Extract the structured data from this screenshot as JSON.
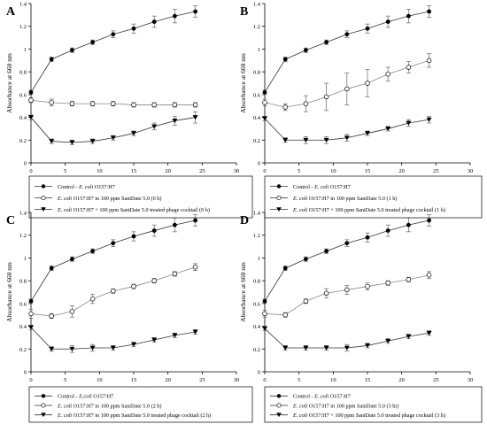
{
  "chart_data": [
    {
      "panel": "A",
      "type": "line",
      "ylabel": "Absorbance at 660 nm",
      "xlabel": "Time (Hours)",
      "xlim": [
        0,
        30
      ],
      "ylim": [
        0,
        1.4
      ],
      "x_ticks": [
        0,
        5,
        10,
        15,
        20,
        25,
        30
      ],
      "y_ticks": [
        0,
        0.2,
        0.4,
        0.6,
        0.8,
        1,
        1.2,
        1.4
      ],
      "grid": false,
      "legend_position": "below",
      "x": [
        0,
        3,
        6,
        9,
        12,
        15,
        18,
        21,
        24
      ],
      "series": [
        {
          "label_parts": [
            "Control - ",
            "E. coli",
            " O157:H7"
          ],
          "marker": "filled-circle",
          "values": [
            0.62,
            0.91,
            0.99,
            1.06,
            1.13,
            1.18,
            1.24,
            1.29,
            1.33
          ],
          "errors": [
            0.02,
            0.02,
            0.02,
            0.02,
            0.03,
            0.04,
            0.05,
            0.06,
            0.05
          ]
        },
        {
          "label_parts": [
            "",
            "E. coli",
            " O157:H7 in 100 ppm SaniDate 5.0 (0 h)"
          ],
          "marker": "open-circle",
          "values": [
            0.55,
            0.53,
            0.52,
            0.52,
            0.52,
            0.51,
            0.51,
            0.51,
            0.51
          ],
          "errors": [
            0.02,
            0.03,
            0.02,
            0.02,
            0.02,
            0.02,
            0.02,
            0.02,
            0.02
          ]
        },
        {
          "label_parts": [
            "",
            "E. coli",
            " O157:H7 + 100 ppm SaniDate 5.0 treated phage cocktail (0 h)"
          ],
          "marker": "filled-triangle-down",
          "values": [
            0.4,
            0.19,
            0.18,
            0.19,
            0.22,
            0.26,
            0.32,
            0.37,
            0.4
          ],
          "errors": [
            0.02,
            0.02,
            0.02,
            0.02,
            0.02,
            0.02,
            0.03,
            0.04,
            0.05
          ]
        }
      ]
    },
    {
      "panel": "B",
      "type": "line",
      "ylabel": "Absorbance at 660 nm",
      "xlabel": "Time (Hours)",
      "xlim": [
        0,
        30
      ],
      "ylim": [
        0,
        1.4
      ],
      "x_ticks": [
        0,
        5,
        10,
        15,
        20,
        25,
        30
      ],
      "y_ticks": [
        0,
        0.2,
        0.4,
        0.6,
        0.8,
        1,
        1.2,
        1.4
      ],
      "grid": false,
      "legend_position": "below",
      "x": [
        0,
        3,
        6,
        9,
        12,
        15,
        18,
        21,
        24
      ],
      "series": [
        {
          "label_parts": [
            "Control - ",
            "E. coli",
            " O157:H7"
          ],
          "marker": "filled-circle",
          "values": [
            0.62,
            0.91,
            0.99,
            1.06,
            1.13,
            1.18,
            1.24,
            1.29,
            1.33
          ],
          "errors": [
            0.02,
            0.02,
            0.02,
            0.02,
            0.03,
            0.04,
            0.05,
            0.06,
            0.05
          ]
        },
        {
          "label_parts": [
            "",
            "E. coli",
            " O157:H7 in 100 ppm SaniDate 5.0 (1 h)"
          ],
          "marker": "open-circle",
          "values": [
            0.53,
            0.49,
            0.52,
            0.58,
            0.65,
            0.7,
            0.78,
            0.84,
            0.9
          ],
          "errors": [
            0.03,
            0.03,
            0.07,
            0.12,
            0.14,
            0.12,
            0.06,
            0.05,
            0.06
          ]
        },
        {
          "label_parts": [
            "",
            "E. coli",
            " O157:H7 + 100 ppm SaniDate 5.0 treated phage cocktail (1 h)"
          ],
          "marker": "filled-triangle-down",
          "values": [
            0.39,
            0.2,
            0.2,
            0.2,
            0.22,
            0.26,
            0.3,
            0.35,
            0.38
          ],
          "errors": [
            0.02,
            0.02,
            0.03,
            0.03,
            0.03,
            0.02,
            0.02,
            0.03,
            0.03
          ]
        }
      ]
    },
    {
      "panel": "C",
      "type": "line",
      "ylabel": "Absorbance at 660 nm",
      "xlabel": "Time (Hours)",
      "xlim": [
        0,
        30
      ],
      "ylim": [
        0,
        1.4
      ],
      "x_ticks": [
        0,
        5,
        10,
        15,
        20,
        25,
        30
      ],
      "y_ticks": [
        0,
        0.2,
        0.4,
        0.6,
        0.8,
        1,
        1.2,
        1.4
      ],
      "grid": false,
      "legend_position": "below",
      "x": [
        0,
        3,
        6,
        9,
        12,
        15,
        18,
        21,
        24
      ],
      "series": [
        {
          "label_parts": [
            "Control - ",
            "E.coli",
            " O157:H7"
          ],
          "marker": "filled-circle",
          "values": [
            0.62,
            0.91,
            0.99,
            1.06,
            1.13,
            1.19,
            1.24,
            1.29,
            1.33
          ],
          "errors": [
            0.02,
            0.02,
            0.02,
            0.02,
            0.03,
            0.04,
            0.05,
            0.06,
            0.05
          ]
        },
        {
          "label_parts": [
            "",
            "E. coli",
            " O157:H7 in 100 ppm SaniDate 5.0 (2 h)"
          ],
          "marker": "open-circle",
          "values": [
            0.51,
            0.49,
            0.53,
            0.64,
            0.71,
            0.75,
            0.8,
            0.86,
            0.92
          ],
          "errors": [
            0.04,
            0.02,
            0.05,
            0.04,
            0.02,
            0.02,
            0.02,
            0.02,
            0.03
          ]
        },
        {
          "label_parts": [
            "",
            "E. coli",
            " O157:H7 in 100 ppm SaniDate 5.0 treated phage cocktail (2 h)"
          ],
          "marker": "filled-triangle-down",
          "values": [
            0.39,
            0.2,
            0.2,
            0.21,
            0.21,
            0.24,
            0.28,
            0.32,
            0.35
          ],
          "errors": [
            0.02,
            0.02,
            0.03,
            0.03,
            0.02,
            0.02,
            0.02,
            0.02,
            0.02
          ]
        }
      ]
    },
    {
      "panel": "D",
      "type": "line",
      "ylabel": "Absorbance at 660 nm",
      "xlabel": "Time (Hours)",
      "xlim": [
        0,
        30
      ],
      "ylim": [
        0,
        1.4
      ],
      "x_ticks": [
        0,
        5,
        10,
        15,
        20,
        25,
        30
      ],
      "y_ticks": [
        0,
        0.2,
        0.4,
        0.6,
        0.8,
        1,
        1.2,
        1.4
      ],
      "grid": false,
      "legend_position": "below",
      "x": [
        0,
        3,
        6,
        9,
        12,
        15,
        18,
        21,
        24
      ],
      "series": [
        {
          "label_parts": [
            "Control - ",
            "E. coli",
            " O157:H7"
          ],
          "marker": "filled-circle",
          "values": [
            0.62,
            0.91,
            0.99,
            1.06,
            1.13,
            1.18,
            1.24,
            1.29,
            1.33
          ],
          "errors": [
            0.02,
            0.02,
            0.02,
            0.02,
            0.03,
            0.04,
            0.05,
            0.06,
            0.05
          ]
        },
        {
          "label_parts": [
            "",
            "E. coli",
            " O157:H7 in 100 ppm SaniDate 5.0 (3 hr)"
          ],
          "marker": "open-circle",
          "values": [
            0.51,
            0.5,
            0.62,
            0.69,
            0.72,
            0.75,
            0.78,
            0.81,
            0.85
          ],
          "errors": [
            0.03,
            0.02,
            0.02,
            0.04,
            0.04,
            0.03,
            0.02,
            0.02,
            0.03
          ]
        },
        {
          "label_parts": [
            "",
            "E. coli",
            " O157:H7 + 100 ppm SaniDate 5.0 treated phage cocktail  (3 h)"
          ],
          "marker": "filled-triangle-down",
          "values": [
            0.38,
            0.21,
            0.21,
            0.21,
            0.21,
            0.23,
            0.27,
            0.31,
            0.34
          ],
          "errors": [
            0.02,
            0.02,
            0.02,
            0.02,
            0.03,
            0.02,
            0.02,
            0.02,
            0.02
          ]
        }
      ]
    }
  ]
}
